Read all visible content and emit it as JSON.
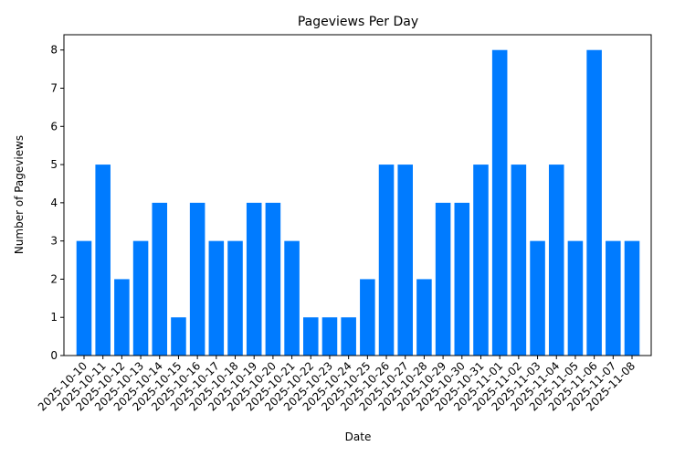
{
  "chart_data": {
    "type": "bar",
    "title": "Pageviews Per Day",
    "x_label": "Date",
    "y_label": "Number of Pageviews",
    "categories": [
      "2025-10-10",
      "2025-10-11",
      "2025-10-12",
      "2025-10-13",
      "2025-10-14",
      "2025-10-15",
      "2025-10-16",
      "2025-10-17",
      "2025-10-18",
      "2025-10-19",
      "2025-10-20",
      "2025-10-21",
      "2025-10-22",
      "2025-10-23",
      "2025-10-24",
      "2025-10-25",
      "2025-10-26",
      "2025-10-27",
      "2025-10-28",
      "2025-10-29",
      "2025-10-30",
      "2025-10-31",
      "2025-11-01",
      "2025-11-02",
      "2025-11-03",
      "2025-11-04",
      "2025-11-05",
      "2025-11-06",
      "2025-11-07",
      "2025-11-08"
    ],
    "values": [
      3,
      5,
      2,
      3,
      4,
      1,
      4,
      3,
      3,
      4,
      4,
      3,
      1,
      1,
      1,
      2,
      5,
      5,
      2,
      4,
      4,
      5,
      8,
      5,
      3,
      5,
      3,
      8,
      3,
      3
    ],
    "color": "#007bff",
    "ylim": [
      0,
      8.4
    ],
    "yticks": [
      0,
      1,
      2,
      3,
      4,
      5,
      6,
      7,
      8
    ],
    "grid": false
  }
}
